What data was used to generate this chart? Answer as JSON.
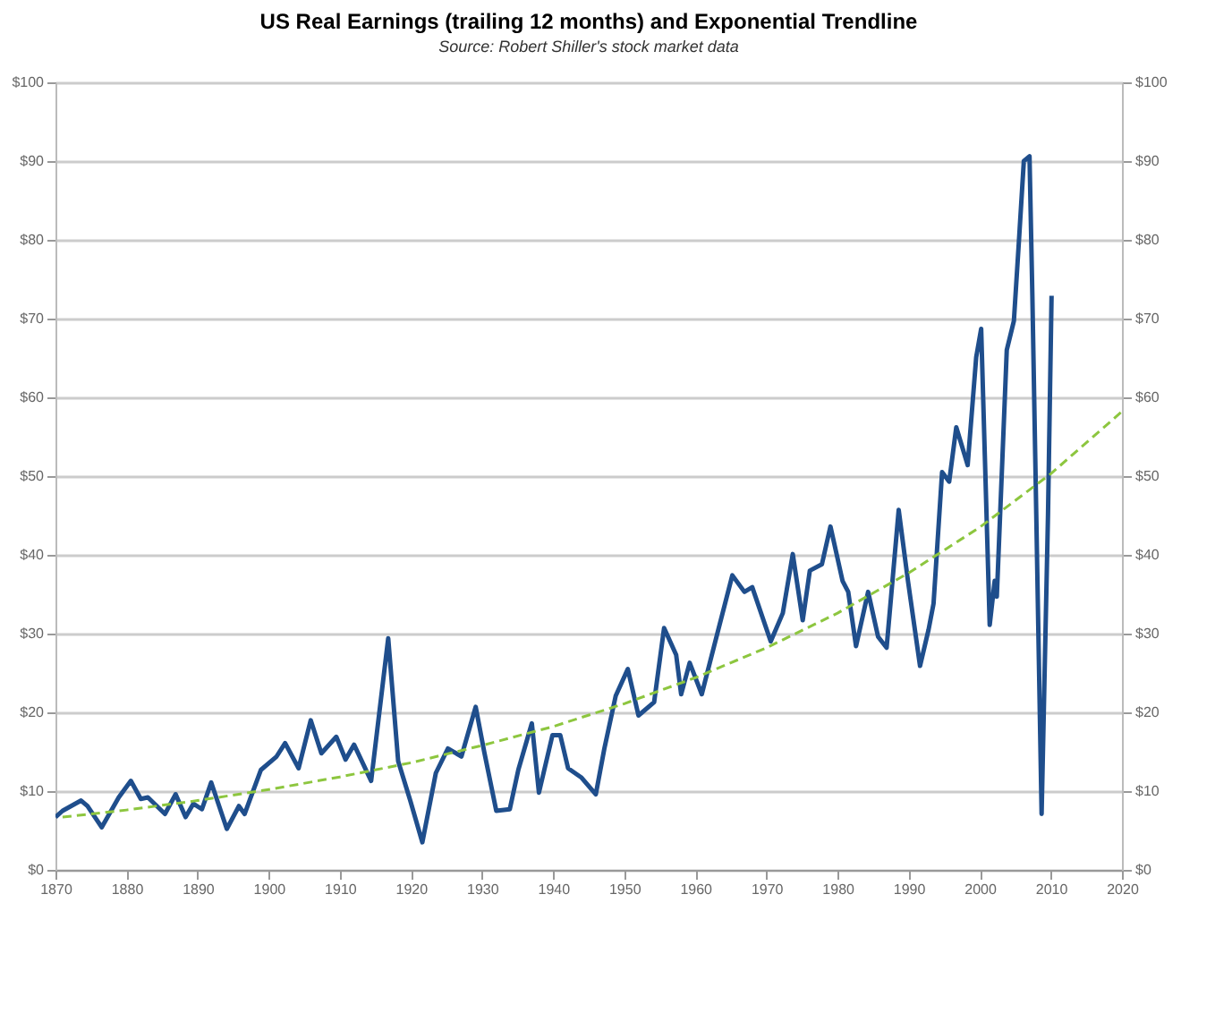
{
  "chart_data": {
    "type": "line",
    "title": "US Real Earnings (trailing 12 months) and Exponential Trendline",
    "annotations": [
      "Source: Robert Shiller's stock market data"
    ],
    "xlim": [
      1870,
      2020
    ],
    "xticks": [
      1870,
      1880,
      1890,
      1900,
      1910,
      1920,
      1930,
      1940,
      1950,
      1960,
      1970,
      1980,
      1990,
      2000,
      2010,
      2020
    ],
    "ylim": [
      0,
      100
    ],
    "yticks": [
      {
        "value": 0,
        "label": "$0"
      },
      {
        "value": 10,
        "label": "$10"
      },
      {
        "value": 20,
        "label": "$20"
      },
      {
        "value": 30,
        "label": "$30"
      },
      {
        "value": 40,
        "label": "$40"
      },
      {
        "value": 50,
        "label": "$50"
      },
      {
        "value": 60,
        "label": "$60"
      },
      {
        "value": 70,
        "label": "$70"
      },
      {
        "value": 80,
        "label": "$80"
      },
      {
        "value": 90,
        "label": "$90"
      },
      {
        "value": 100,
        "label": "$100"
      }
    ],
    "y2lim": [
      0,
      100
    ],
    "y2ticks": [
      {
        "value": 0,
        "label": "$0"
      },
      {
        "value": 10,
        "label": "$10"
      },
      {
        "value": 20,
        "label": "$20"
      },
      {
        "value": 30,
        "label": "$30"
      },
      {
        "value": 40,
        "label": "$40"
      },
      {
        "value": 50,
        "label": "$50"
      },
      {
        "value": 60,
        "label": "$60"
      },
      {
        "value": 70,
        "label": "$70"
      },
      {
        "value": 80,
        "label": "$80"
      },
      {
        "value": 90,
        "label": "$90"
      },
      {
        "value": 100,
        "label": "$100"
      }
    ],
    "grid": "y",
    "series": [
      {
        "color": "#1f4e8c",
        "x": [
          1870,
          1871,
          1873.6,
          1874.5,
          1876.5,
          1878.9,
          1880.6,
          1882,
          1883,
          1885.4,
          1886.9,
          1888.3,
          1889.4,
          1890.6,
          1891.9,
          1894.1,
          1895.8,
          1896.6,
          1898.9,
          1901.1,
          1902.3,
          1904.2,
          1905.9,
          1907.4,
          1909.5,
          1910.8,
          1912,
          1914.4,
          1916.8,
          1918.2,
          1919.9,
          1921.6,
          1923.5,
          1925.2,
          1927.1,
          1929.1,
          1930.3,
          1932,
          1933.9,
          1935.1,
          1937,
          1938,
          1939.9,
          1941,
          1942.1,
          1944,
          1946,
          1947.2,
          1948.8,
          1950.5,
          1952,
          1954.2,
          1955.6,
          1957.3,
          1958,
          1959.2,
          1960.9,
          1962.8,
          1965.2,
          1966.9,
          1968,
          1970.6,
          1972.3,
          1973.7,
          1975.1,
          1976.1,
          1977.8,
          1979,
          1980.7,
          1981.5,
          1982.6,
          1984.3,
          1985.7,
          1986.9,
          1988.6,
          1989.9,
          1991.6,
          1992.8,
          1993.5,
          1994.7,
          1995.7,
          1996.7,
          1998.3,
          1999.5,
          2000.2,
          2001.4,
          2002.1,
          2002.4,
          2003.8,
          2004.8,
          2005.5,
          2006.2,
          2007,
          2007.4,
          2008.7,
          2009.6,
          2010.1
        ],
        "values": [
          6.7,
          7.5,
          8.8,
          8.1,
          5.4,
          9.2,
          11.3,
          9.0,
          9.2,
          7.1,
          9.6,
          6.7,
          8.4,
          7.7,
          11.1,
          5.2,
          8.1,
          7.1,
          12.7,
          14.4,
          16.1,
          12.9,
          19.0,
          14.8,
          16.9,
          14.0,
          15.9,
          11.3,
          29.4,
          13.8,
          8.8,
          3.5,
          12.3,
          15.4,
          14.4,
          20.7,
          15.0,
          7.5,
          7.7,
          12.7,
          18.6,
          9.8,
          17.1,
          17.1,
          12.9,
          11.7,
          9.6,
          15.4,
          22.1,
          25.5,
          19.6,
          21.3,
          30.7,
          27.3,
          22.3,
          26.3,
          22.3,
          29.0,
          37.4,
          35.3,
          35.9,
          29.0,
          32.6,
          40.1,
          31.7,
          38.0,
          38.8,
          43.6,
          36.7,
          35.3,
          28.4,
          35.3,
          29.6,
          28.2,
          45.7,
          36.7,
          25.9,
          30.5,
          33.8,
          50.5,
          49.3,
          56.2,
          51.4,
          65.1,
          68.7,
          31.1,
          36.7,
          34.7,
          66.0,
          69.7,
          79.7,
          90.0,
          90.6,
          72.9,
          7.1,
          45.1,
          72.9
        ]
      },
      {
        "type": "line",
        "line_style": "dashed",
        "color": "#8dc63f",
        "x": [
          1871,
          1880,
          1890,
          1900,
          1910,
          1920,
          1930,
          1940,
          1950,
          1960,
          1970,
          1980,
          1990,
          2000,
          2010,
          2020
        ],
        "values": [
          6.7,
          7.6,
          8.8,
          10.2,
          11.8,
          13.6,
          15.8,
          18.2,
          21.1,
          24.4,
          28.2,
          32.6,
          37.7,
          43.5,
          50.3,
          58.2
        ]
      }
    ]
  }
}
